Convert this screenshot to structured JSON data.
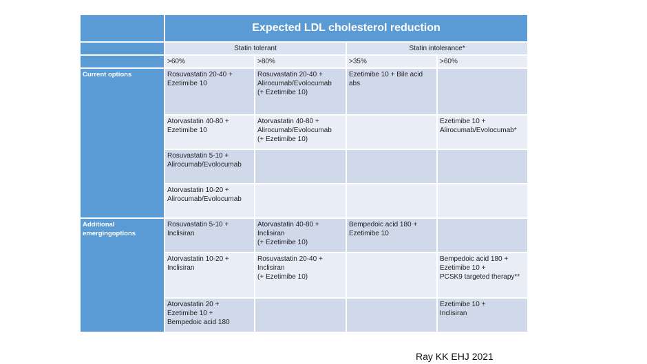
{
  "table": {
    "title": "Expected LDL cholesterol reduction",
    "groups": [
      "Statin tolerant",
      "Statin intolerance*"
    ],
    "thresholds": [
      ">60%",
      ">80%",
      ">35%",
      ">60%"
    ],
    "sections": [
      {
        "label": "Current options",
        "rows": [
          [
            [
              "Rosuvastatin 20-40 +",
              "Ezetimibe 10"
            ],
            [
              "Rosuvastatin 20-40 +",
              "Alirocumab/Evolocumab",
              "(+ Ezetimibe 10)"
            ],
            [
              "Ezetimibe 10 + Bile acid",
              "abs"
            ],
            []
          ],
          [
            [
              "Atorvastatin 40-80 +",
              "Ezetimibe 10"
            ],
            [
              "Atorvastatin 40-80 +",
              "Alirocumab/Evolocumab",
              "(+ Ezetimibe 10)"
            ],
            [],
            [
              "Ezetimibe 10 +",
              "Alirocumab/Evolocumab*"
            ]
          ],
          [
            [
              "Rosuvastatin 5-10 +",
              "Alirocumab/Evolocumab"
            ],
            [],
            [],
            []
          ],
          [
            [
              "Atorvastatin 10-20 +",
              "Alirocumab/Evolocumab"
            ],
            [],
            [],
            []
          ]
        ]
      },
      {
        "label": "Additional emergingoptions",
        "label_lines": [
          "Additional",
          "emergingoptions"
        ],
        "rows": [
          [
            [
              "Rosuvastatin 5-10 +",
              "Inclisiran"
            ],
            [
              "Atorvastatin 40-80 +",
              "Inclisiran",
              "(+ Ezetimibe 10)"
            ],
            [
              "Bempedoic acid 180 +",
              "Ezetimibe 10"
            ],
            []
          ],
          [
            [
              "Atorvastatin 10-20 +",
              "Inclisiran"
            ],
            [
              "Rosuvastatin 20-40 +",
              "Inclisiran",
              "(+ Ezetimibe 10)"
            ],
            [],
            [
              "Bempedoic acid 180 +",
              "Ezetimibe 10 +",
              "PCSK9 targeted therapy**"
            ]
          ],
          [
            [
              "Atorvastatin 20 +",
              "Ezetimibe 10 +",
              "Bempedoic acid 180"
            ],
            [],
            [],
            [
              "Ezetimibe 10 +",
              "Inclisiran"
            ]
          ]
        ]
      }
    ]
  },
  "citation": "Ray KK EHJ 2021",
  "colors": {
    "header_blue": "#5b9bd5",
    "row_dark": "#cfd9ea",
    "row_light": "#e8edf6"
  }
}
